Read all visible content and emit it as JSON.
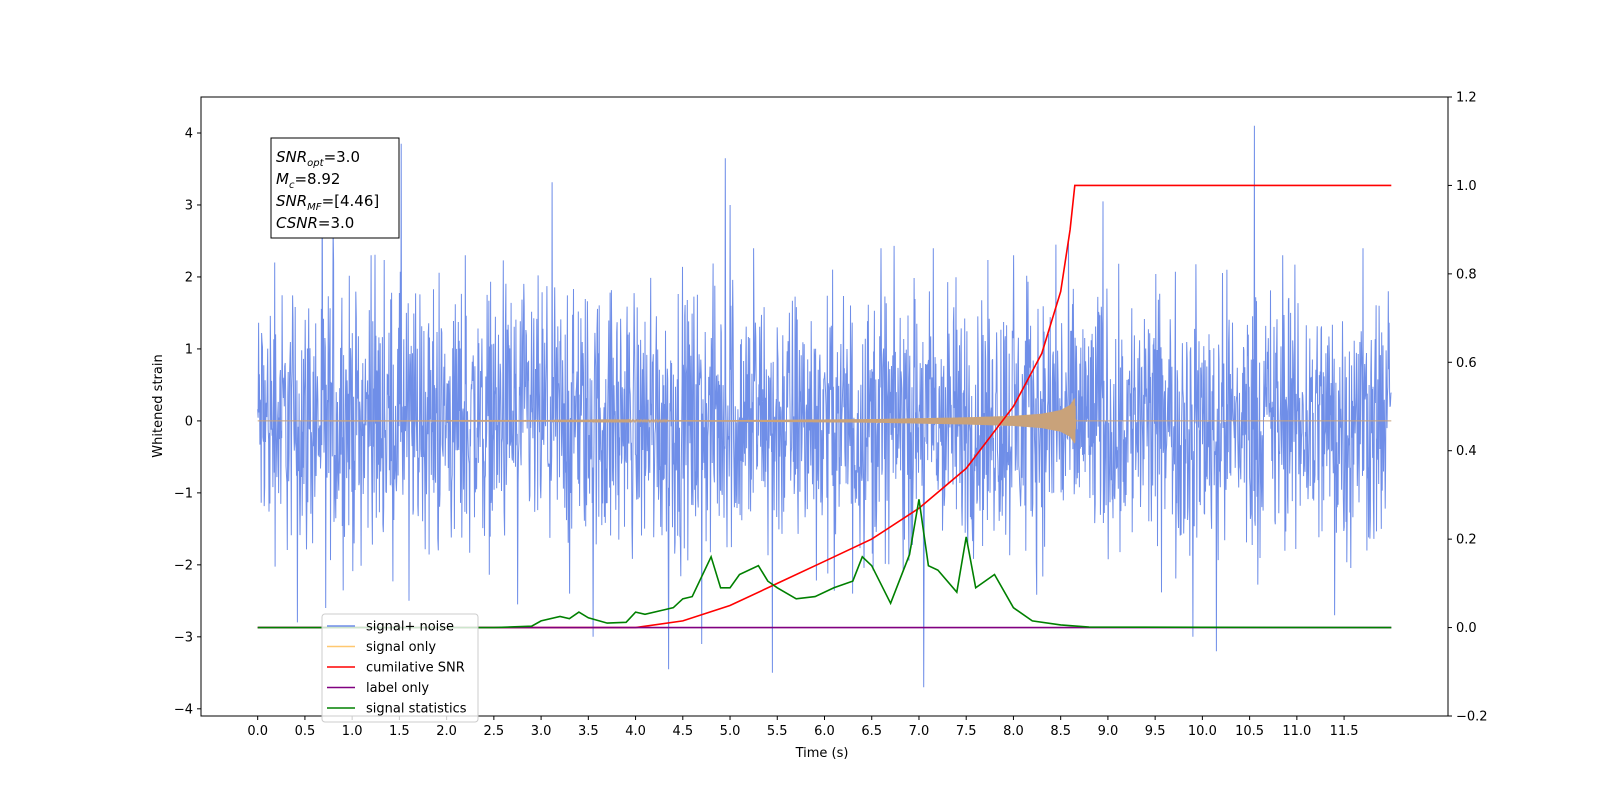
{
  "chart_data": {
    "type": "line",
    "xlabel": "Time (s)",
    "ylabel": "Whitened strain",
    "xlim": [
      -0.6,
      12.6
    ],
    "ylim": [
      -4.1,
      4.5
    ],
    "y2lim": [
      -0.2,
      1.2
    ],
    "x_ticks": [
      "0.0",
      "0.5",
      "1.0",
      "1.5",
      "2.0",
      "2.5",
      "3.0",
      "3.5",
      "4.0",
      "4.5",
      "5.0",
      "5.5",
      "6.0",
      "6.5",
      "7.0",
      "7.5",
      "8.0",
      "8.5",
      "9.0",
      "9.5",
      "10.0",
      "10.5",
      "11.0",
      "11.5"
    ],
    "y_ticks": [
      "4",
      "3",
      "2",
      "1",
      "0",
      "−1",
      "−2",
      "−3",
      "−4"
    ],
    "y2_ticks": [
      "1.2",
      "1.0",
      "0.8",
      "0.6",
      "0.4",
      "0.2",
      "0.0",
      "−0.2"
    ],
    "legend_position": "lower-left",
    "grid": false,
    "annotation": {
      "lines": [
        {
          "base": "SNR",
          "sub": "opt",
          "rest": "=3.0"
        },
        {
          "base": "M",
          "sub": "c",
          "rest": "=8.92"
        },
        {
          "base": "SNR",
          "sub": "MF",
          "rest": "=[4.46]"
        },
        {
          "base": "CSNR",
          "sub": "",
          "rest": "=3.0"
        }
      ]
    },
    "series": [
      {
        "name": "signal+ noise",
        "color": "#6f8ee8",
        "axis": "left",
        "envelope": {
          "x_range": [
            0.0,
            12.0
          ],
          "typical_amplitude": 1.6,
          "spikes": [
            [
              0.18,
              2.2
            ],
            [
              0.42,
              -2.8
            ],
            [
              0.72,
              -2.6
            ],
            [
              0.8,
              2.7
            ],
            [
              1.2,
              2.3
            ],
            [
              1.52,
              3.85
            ],
            [
              1.6,
              -2.5
            ],
            [
              2.2,
              2.3
            ],
            [
              2.75,
              -2.55
            ],
            [
              3.3,
              -2.4
            ],
            [
              3.55,
              -3.0
            ],
            [
              4.35,
              -3.45
            ],
            [
              4.7,
              -3.1
            ],
            [
              4.95,
              3.65
            ],
            [
              5.0,
              3.0
            ],
            [
              5.25,
              2.4
            ],
            [
              5.45,
              -3.5
            ],
            [
              6.3,
              -2.4
            ],
            [
              6.6,
              2.4
            ],
            [
              7.05,
              -3.7
            ],
            [
              7.15,
              2.4
            ],
            [
              8.0,
              2.3
            ],
            [
              8.45,
              2.45
            ],
            [
              8.95,
              3.05
            ],
            [
              9.9,
              -3.0
            ],
            [
              10.15,
              -3.2
            ],
            [
              10.55,
              4.1
            ],
            [
              10.85,
              2.3
            ],
            [
              11.4,
              -2.7
            ],
            [
              11.7,
              2.4
            ]
          ]
        }
      },
      {
        "name": "signal only",
        "color": "#f5a623",
        "axis": "left",
        "x": [
          0.0,
          3.0,
          5.0,
          6.5,
          7.5,
          8.0,
          8.3,
          8.5,
          8.6,
          8.65,
          8.66,
          12.0
        ],
        "amplitude": [
          0.0,
          0.003,
          0.01,
          0.025,
          0.05,
          0.07,
          0.1,
          0.15,
          0.22,
          0.32,
          0.0,
          0.0
        ]
      },
      {
        "name": "cumilative SNR",
        "color": "#ff0000",
        "axis": "right",
        "x": [
          0.0,
          4.0,
          4.5,
          5.0,
          5.5,
          6.0,
          6.5,
          7.0,
          7.5,
          8.0,
          8.3,
          8.5,
          8.6,
          8.65,
          12.0
        ],
        "y": [
          0.0,
          0.0,
          0.015,
          0.05,
          0.1,
          0.15,
          0.2,
          0.27,
          0.36,
          0.5,
          0.62,
          0.76,
          0.9,
          1.0,
          1.0
        ]
      },
      {
        "name": "label only",
        "color": "#800080",
        "axis": "right",
        "x": [
          0.0,
          12.0
        ],
        "y": [
          0.0,
          0.0
        ]
      },
      {
        "name": "signal statistics",
        "color": "#008000",
        "axis": "right",
        "x": [
          0.0,
          2.5,
          2.9,
          3.0,
          3.2,
          3.3,
          3.4,
          3.5,
          3.7,
          3.9,
          4.0,
          4.1,
          4.3,
          4.4,
          4.5,
          4.6,
          4.8,
          4.9,
          5.0,
          5.1,
          5.3,
          5.4,
          5.5,
          5.7,
          5.9,
          6.1,
          6.3,
          6.4,
          6.5,
          6.7,
          6.9,
          7.0,
          7.1,
          7.2,
          7.4,
          7.5,
          7.6,
          7.8,
          8.0,
          8.2,
          8.5,
          8.8,
          12.0
        ],
        "y": [
          0.0,
          0.0,
          0.003,
          0.015,
          0.025,
          0.02,
          0.035,
          0.022,
          0.01,
          0.012,
          0.035,
          0.03,
          0.04,
          0.045,
          0.065,
          0.07,
          0.16,
          0.09,
          0.09,
          0.12,
          0.14,
          0.105,
          0.09,
          0.065,
          0.07,
          0.09,
          0.105,
          0.16,
          0.14,
          0.055,
          0.165,
          0.29,
          0.14,
          0.13,
          0.08,
          0.205,
          0.09,
          0.12,
          0.045,
          0.015,
          0.006,
          0.001,
          0.0
        ]
      }
    ]
  }
}
